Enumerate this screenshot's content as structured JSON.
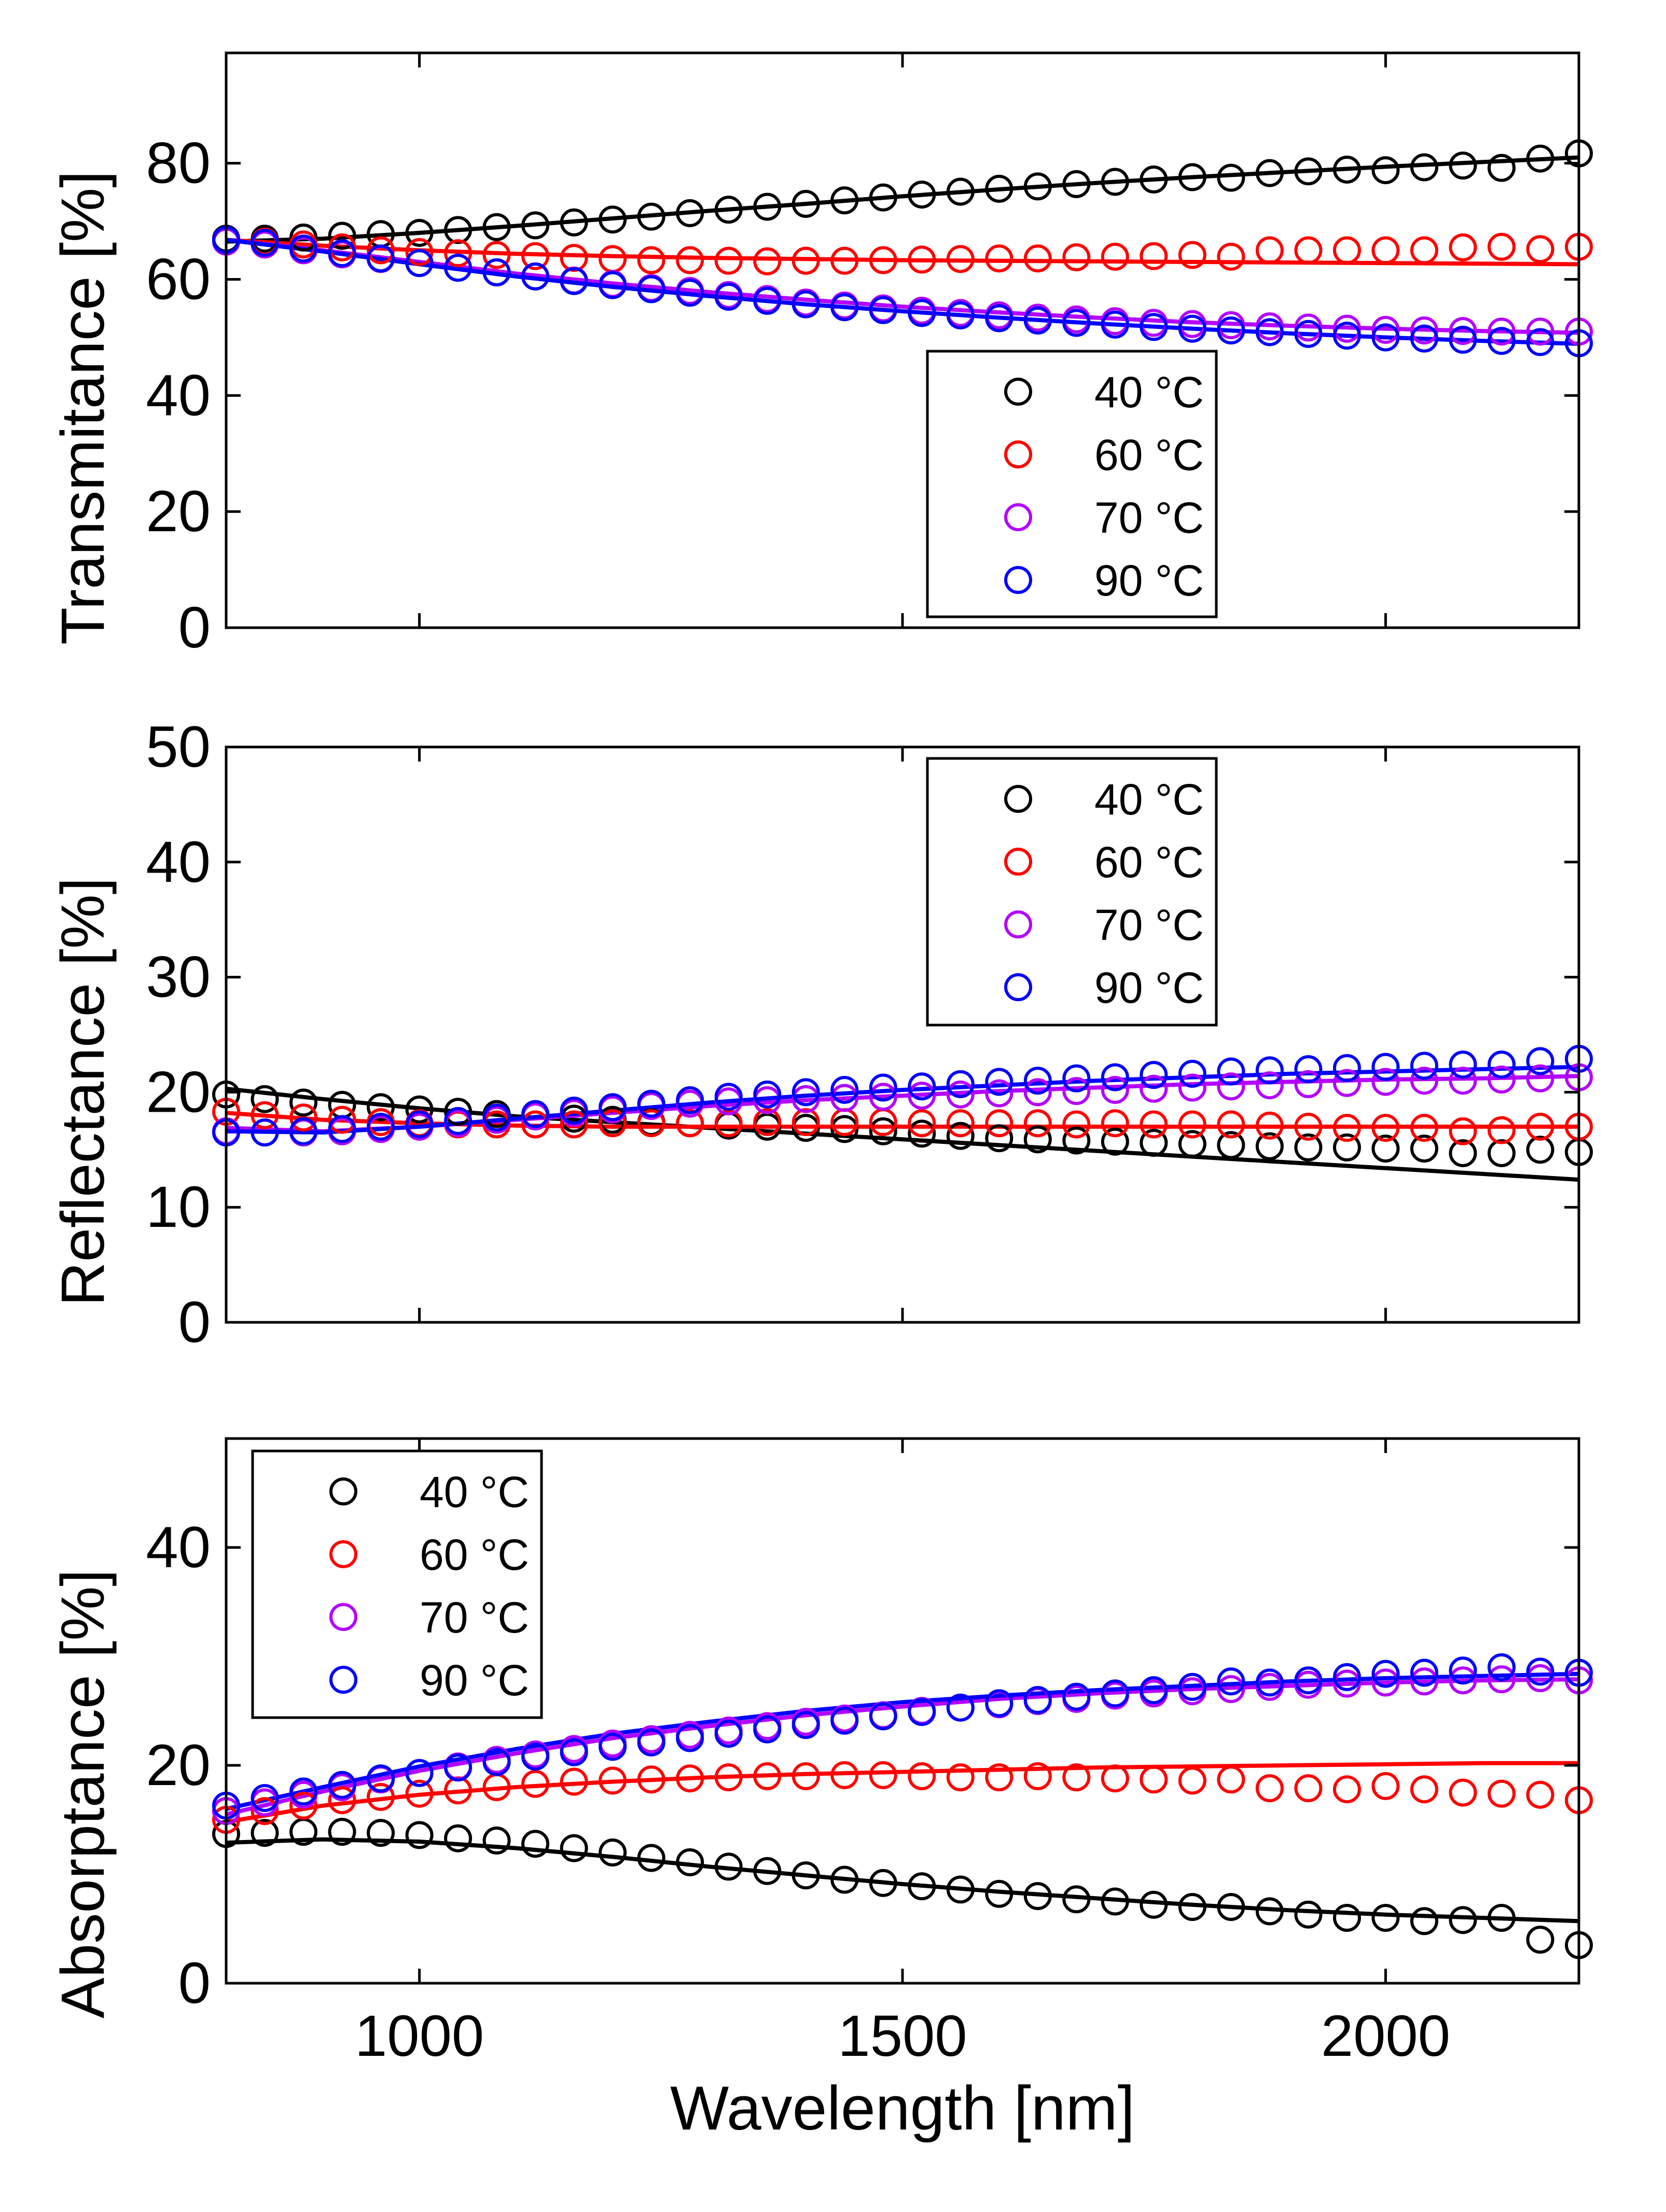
{
  "chart_data": [
    {
      "type": "scatter",
      "ylabel": "Transmitance [%]",
      "xlabel": "",
      "xlim": [
        800,
        2200
      ],
      "ylim": [
        0,
        99
      ],
      "xticks": [
        1000,
        1500,
        2000
      ],
      "yticks": [
        0,
        20,
        40,
        60,
        80
      ],
      "show_xtick_labels": false,
      "legend_placement": "lower-center-right",
      "legend": [
        "40 °C",
        "60 °C",
        "70 °C",
        "90 °C"
      ],
      "x": [
        800,
        840,
        880,
        920,
        960,
        1000,
        1040,
        1080,
        1120,
        1160,
        1200,
        1240,
        1280,
        1320,
        1360,
        1400,
        1440,
        1480,
        1520,
        1560,
        1600,
        1640,
        1680,
        1720,
        1760,
        1800,
        1840,
        1880,
        1920,
        1960,
        2000,
        2040,
        2080,
        2120,
        2160,
        2200
      ],
      "fit_x": [
        800,
        900,
        1000,
        1100,
        1200,
        1300,
        1400,
        1500,
        1600,
        1700,
        1800,
        1900,
        2000,
        2100,
        2200
      ],
      "series": [
        {
          "name": "40 °C",
          "color": "#000000",
          "values": [
            67,
            67,
            67.2,
            67.5,
            67.8,
            68,
            68.5,
            69,
            69.3,
            69.8,
            70.3,
            70.8,
            71.4,
            72,
            72.5,
            73,
            73.6,
            74.1,
            74.6,
            75.1,
            75.6,
            76,
            76.4,
            76.8,
            77.2,
            77.6,
            77.5,
            78.3,
            78.6,
            78.9,
            78.8,
            79.3,
            79.6,
            79.2,
            80.8,
            81.7
          ],
          "fit": [
            66.5,
            67,
            68,
            69.2,
            70.5,
            71.8,
            73,
            74.3,
            75.5,
            76.6,
            77.6,
            78.5,
            79.4,
            80.2,
            81
          ]
        },
        {
          "name": "60 °C",
          "color": "#ff0000",
          "values": [
            66.8,
            66.5,
            66,
            65.5,
            65,
            64.7,
            64.5,
            64.2,
            64,
            63.7,
            63.5,
            63.3,
            63.3,
            63.2,
            63.1,
            63.2,
            63.2,
            63.3,
            63.4,
            63.5,
            63.6,
            63.6,
            63.8,
            63.9,
            64,
            64.2,
            63.9,
            65,
            65,
            65,
            65,
            65,
            65.5,
            65.6,
            65.2,
            65.6
          ],
          "fit": [
            66.8,
            65.8,
            65,
            64.4,
            64,
            63.7,
            63.5,
            63.3,
            63.2,
            63.1,
            63,
            62.9,
            62.8,
            62.7,
            62.6
          ]
        },
        {
          "name": "70 °C",
          "color": "#b400ff",
          "values": [
            66.5,
            66,
            65,
            64.3,
            63.5,
            62.8,
            62,
            61.2,
            60.5,
            59.8,
            59.2,
            58.5,
            58,
            57.3,
            56.6,
            56,
            55.5,
            55,
            54.6,
            54.2,
            53.8,
            53.4,
            53.1,
            52.8,
            52.5,
            52.3,
            52.1,
            51.9,
            51.7,
            51.5,
            51.3,
            51.2,
            51.1,
            51,
            51,
            51
          ],
          "fit": [
            66.8,
            65,
            63,
            61,
            59.3,
            57.8,
            56.5,
            55.3,
            54.3,
            53.4,
            52.6,
            52,
            51.5,
            51.1,
            50.8
          ]
        },
        {
          "name": "90 °C",
          "color": "#0000ff",
          "values": [
            66.8,
            66.3,
            65.3,
            64.5,
            63.6,
            62.8,
            62,
            61.2,
            60.5,
            59.7,
            59,
            58.3,
            57.7,
            57,
            56.3,
            55.7,
            55.2,
            54.7,
            54.2,
            53.8,
            53.3,
            52.9,
            52.5,
            52.2,
            51.8,
            51.5,
            51.2,
            50.9,
            50.6,
            50.3,
            50,
            49.8,
            49.6,
            49.4,
            49.2,
            49
          ],
          "fit": [
            66.8,
            64.8,
            62.6,
            60.5,
            58.7,
            57.1,
            55.7,
            54.5,
            53.4,
            52.4,
            51.5,
            50.7,
            50,
            49.4,
            48.9
          ]
        }
      ]
    },
    {
      "type": "scatter",
      "ylabel": "Reflectance [%]",
      "xlabel": "",
      "xlim": [
        800,
        2200
      ],
      "ylim": [
        0,
        50
      ],
      "xticks": [
        1000,
        1500,
        2000
      ],
      "yticks": [
        0,
        10,
        20,
        30,
        40,
        50
      ],
      "show_xtick_labels": false,
      "legend_placement": "top-center-right",
      "legend": [
        "40 °C",
        "60 °C",
        "70 °C",
        "90 °C"
      ],
      "x": [
        800,
        840,
        880,
        920,
        960,
        1000,
        1040,
        1080,
        1120,
        1160,
        1200,
        1240,
        1280,
        1320,
        1360,
        1400,
        1440,
        1480,
        1520,
        1560,
        1600,
        1640,
        1680,
        1720,
        1760,
        1800,
        1840,
        1880,
        1920,
        1960,
        2000,
        2040,
        2080,
        2120,
        2160,
        2200
      ],
      "fit_x": [
        800,
        900,
        1000,
        1100,
        1200,
        1300,
        1400,
        1500,
        1600,
        1700,
        1800,
        1900,
        2000,
        2100,
        2200
      ],
      "series": [
        {
          "name": "40 °C",
          "color": "#000000",
          "values": [
            19.8,
            19.4,
            19.1,
            18.9,
            18.7,
            18.5,
            18.3,
            18.1,
            17.9,
            17.7,
            17.6,
            17.4,
            17.3,
            17.1,
            17,
            16.9,
            16.8,
            16.6,
            16.4,
            16.2,
            16,
            15.9,
            15.8,
            15.7,
            15.6,
            15.5,
            15.4,
            15.3,
            15.2,
            15.2,
            15.1,
            15.1,
            14.7,
            14.7,
            15,
            14.8
          ],
          "fit": [
            20.3,
            19.4,
            18.6,
            17.9,
            17.4,
            16.9,
            16.4,
            15.9,
            15.4,
            14.9,
            14.4,
            13.9,
            13.4,
            12.9,
            12.4
          ]
        },
        {
          "name": "60 °C",
          "color": "#ff0000",
          "values": [
            18.3,
            18,
            17.8,
            17.6,
            17.4,
            17.3,
            17.2,
            17.2,
            17.2,
            17.2,
            17.3,
            17.3,
            17.3,
            17.3,
            17.4,
            17.4,
            17.4,
            17.4,
            17.3,
            17.3,
            17.3,
            17.3,
            17.2,
            17.3,
            17.2,
            17.2,
            17.2,
            17.1,
            17,
            16.9,
            16.9,
            16.9,
            16.6,
            16.7,
            17,
            17
          ],
          "fit": [
            18.2,
            17.6,
            17.3,
            17.1,
            17,
            17,
            17,
            17,
            17,
            17,
            17,
            17,
            17,
            17,
            17
          ]
        },
        {
          "name": "70 °C",
          "color": "#b400ff",
          "values": [
            16.6,
            16.5,
            16.5,
            16.6,
            16.8,
            17,
            17.3,
            17.6,
            17.9,
            18.2,
            18.5,
            18.8,
            19,
            19.2,
            19.3,
            19.4,
            19.5,
            19.6,
            19.7,
            19.8,
            19.9,
            20,
            20.1,
            20.2,
            20.3,
            20.4,
            20.5,
            20.6,
            20.7,
            20.8,
            20.9,
            21,
            21,
            21.1,
            21.2,
            21.3
          ],
          "fit": [
            16.9,
            16.6,
            17,
            17.6,
            18.2,
            18.8,
            19.3,
            19.7,
            20.1,
            20.4,
            20.7,
            20.9,
            21.1,
            21.2,
            21.4
          ]
        },
        {
          "name": "90 °C",
          "color": "#0000ff",
          "values": [
            16.5,
            16.5,
            16.6,
            16.8,
            17,
            17.2,
            17.5,
            17.8,
            18.1,
            18.4,
            18.7,
            19,
            19.3,
            19.6,
            19.8,
            20,
            20.2,
            20.4,
            20.5,
            20.7,
            20.9,
            21,
            21.2,
            21.3,
            21.5,
            21.6,
            21.8,
            21.9,
            22,
            22.1,
            22.2,
            22.3,
            22.4,
            22.4,
            22.7,
            22.9
          ],
          "fit": [
            16.6,
            16.5,
            17,
            17.7,
            18.4,
            19.1,
            19.7,
            20.2,
            20.6,
            21,
            21.3,
            21.6,
            21.8,
            22,
            22.2
          ]
        }
      ]
    },
    {
      "type": "scatter",
      "ylabel": "Absorptance [%]",
      "xlabel": "Wavelength [nm]",
      "xlim": [
        800,
        2200
      ],
      "ylim": [
        0,
        50
      ],
      "xticks": [
        1000,
        1500,
        2000
      ],
      "yticks": [
        0,
        20,
        40
      ],
      "show_xtick_labels": true,
      "legend_placement": "top-left",
      "legend": [
        "40 °C",
        "60 °C",
        "70 °C",
        "90 °C"
      ],
      "x": [
        800,
        840,
        880,
        920,
        960,
        1000,
        1040,
        1080,
        1120,
        1160,
        1200,
        1240,
        1280,
        1320,
        1360,
        1400,
        1440,
        1480,
        1520,
        1560,
        1600,
        1640,
        1680,
        1720,
        1760,
        1800,
        1840,
        1880,
        1920,
        1960,
        2000,
        2040,
        2080,
        2120,
        2160,
        2200
      ],
      "fit_x": [
        800,
        900,
        1000,
        1100,
        1200,
        1300,
        1400,
        1500,
        1600,
        1700,
        1800,
        1900,
        2000,
        2100,
        2200
      ],
      "series": [
        {
          "name": "40 °C",
          "color": "#000000",
          "values": [
            13.7,
            13.8,
            13.9,
            13.9,
            13.8,
            13.6,
            13.3,
            13.1,
            12.8,
            12.4,
            12,
            11.5,
            11.1,
            10.7,
            10.3,
            9.9,
            9.5,
            9.2,
            8.9,
            8.6,
            8.2,
            8,
            7.7,
            7.5,
            7.2,
            7,
            7,
            6.6,
            6.3,
            6,
            6,
            5.7,
            5.8,
            6,
            4,
            3.5
          ],
          "fit": [
            12.9,
            13.2,
            13,
            12.4,
            11.6,
            10.7,
            9.9,
            9.1,
            8.4,
            7.8,
            7.2,
            6.7,
            6.3,
            6,
            5.7
          ]
        },
        {
          "name": "60 °C",
          "color": "#ff0000",
          "values": [
            15,
            15.8,
            16.3,
            16.8,
            17.1,
            17.4,
            17.7,
            18,
            18.3,
            18.5,
            18.6,
            18.7,
            18.8,
            18.9,
            19,
            19,
            19.1,
            19.1,
            19,
            18.9,
            18.9,
            19,
            18.9,
            18.8,
            18.7,
            18.6,
            18.7,
            17.9,
            17.9,
            17.8,
            18.1,
            17.8,
            17.5,
            17.4,
            17.3,
            16.8
          ],
          "fit": [
            14.8,
            16.3,
            17.3,
            18,
            18.5,
            18.9,
            19.2,
            19.4,
            19.6,
            19.8,
            19.9,
            20,
            20.1,
            20.2,
            20.2
          ]
        },
        {
          "name": "70 °C",
          "color": "#b400ff",
          "values": [
            15.8,
            16.6,
            17.3,
            18,
            18.7,
            19.3,
            19.9,
            20.5,
            21,
            21.5,
            22,
            22.4,
            22.8,
            23.2,
            23.6,
            24,
            24.3,
            24.6,
            25,
            25.3,
            25.6,
            25.9,
            26.1,
            26.4,
            26.6,
            26.8,
            27,
            27.2,
            27.4,
            27.5,
            27.6,
            27.7,
            27.8,
            27.9,
            28,
            27.8
          ],
          "fit": [
            15.5,
            17.6,
            19.5,
            21.1,
            22.5,
            23.6,
            24.6,
            25.4,
            26.1,
            26.6,
            27,
            27.3,
            27.6,
            27.8,
            27.9
          ]
        },
        {
          "name": "90 °C",
          "color": "#0000ff",
          "values": [
            16.3,
            17,
            17.6,
            18.2,
            18.8,
            19.3,
            19.8,
            20.3,
            20.8,
            21.2,
            21.7,
            22.1,
            22.5,
            22.9,
            23.3,
            23.7,
            24.1,
            24.5,
            24.9,
            25.3,
            25.7,
            26,
            26.3,
            26.6,
            26.9,
            27.2,
            27.7,
            27.6,
            27.8,
            28.1,
            28.4,
            28.5,
            28.7,
            29,
            28.6,
            28.5
          ],
          "fit": [
            16,
            18,
            19.9,
            21.5,
            22.9,
            24,
            25,
            25.8,
            26.4,
            26.9,
            27.3,
            27.7,
            28,
            28.2,
            28.4
          ]
        }
      ]
    }
  ]
}
